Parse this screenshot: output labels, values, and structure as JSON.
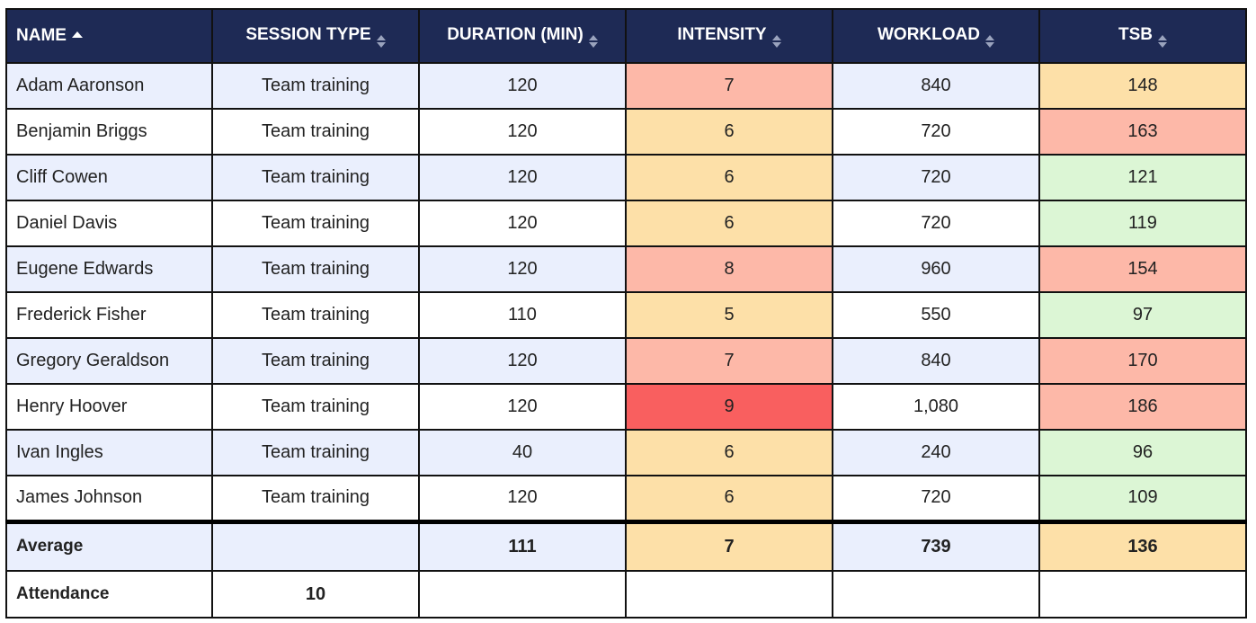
{
  "headers": {
    "name": "NAME",
    "session_type": "SESSION TYPE",
    "duration": "DURATION (MIN)",
    "intensity": "INTENSITY",
    "workload": "WORKLOAD",
    "tsb": "TSB"
  },
  "sort": {
    "column": "name",
    "direction": "ascending"
  },
  "colors": {
    "header_bg": "#1e2a55",
    "row_alt": "#eaeffd",
    "high": "#fdb8a8",
    "medium": "#fde0a8",
    "low": "#dcf6d5",
    "very_high": "#f95f5f"
  },
  "rows": [
    {
      "name": "Adam Aaronson",
      "session": "Team training",
      "duration": "120",
      "intensity": "7",
      "intensity_level": "high",
      "workload": "840",
      "tsb": "148",
      "tsb_level": "medium"
    },
    {
      "name": "Benjamin Briggs",
      "session": "Team training",
      "duration": "120",
      "intensity": "6",
      "intensity_level": "medium",
      "workload": "720",
      "tsb": "163",
      "tsb_level": "high"
    },
    {
      "name": "Cliff Cowen",
      "session": "Team training",
      "duration": "120",
      "intensity": "6",
      "intensity_level": "medium",
      "workload": "720",
      "tsb": "121",
      "tsb_level": "low"
    },
    {
      "name": "Daniel Davis",
      "session": "Team training",
      "duration": "120",
      "intensity": "6",
      "intensity_level": "medium",
      "workload": "720",
      "tsb": "119",
      "tsb_level": "low"
    },
    {
      "name": "Eugene Edwards",
      "session": "Team training",
      "duration": "120",
      "intensity": "8",
      "intensity_level": "high",
      "workload": "960",
      "tsb": "154",
      "tsb_level": "high"
    },
    {
      "name": "Frederick Fisher",
      "session": "Team training",
      "duration": "110",
      "intensity": "5",
      "intensity_level": "medium",
      "workload": "550",
      "tsb": "97",
      "tsb_level": "low"
    },
    {
      "name": "Gregory Geraldson",
      "session": "Team training",
      "duration": "120",
      "intensity": "7",
      "intensity_level": "high",
      "workload": "840",
      "tsb": "170",
      "tsb_level": "high"
    },
    {
      "name": "Henry Hoover",
      "session": "Team training",
      "duration": "120",
      "intensity": "9",
      "intensity_level": "very_high",
      "workload": "1,080",
      "tsb": "186",
      "tsb_level": "high"
    },
    {
      "name": "Ivan Ingles",
      "session": "Team training",
      "duration": "40",
      "intensity": "6",
      "intensity_level": "medium",
      "workload": "240",
      "tsb": "96",
      "tsb_level": "low"
    },
    {
      "name": "James Johnson",
      "session": "Team training",
      "duration": "120",
      "intensity": "6",
      "intensity_level": "medium",
      "workload": "720",
      "tsb": "109",
      "tsb_level": "low"
    }
  ],
  "average": {
    "label": "Average",
    "session": "",
    "duration": "111",
    "intensity": "7",
    "intensity_level": "medium",
    "workload": "739",
    "tsb": "136",
    "tsb_level": "medium"
  },
  "attendance": {
    "label": "Attendance",
    "value": "10"
  }
}
